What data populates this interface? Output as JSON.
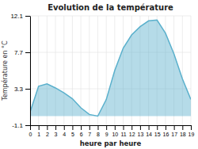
{
  "chart_data": {
    "type": "area",
    "title": "Evolution de la température",
    "x_label": "heure par heure",
    "y_label": "Température en °C",
    "x": [
      0,
      1,
      2,
      3,
      4,
      5,
      6,
      7,
      8,
      9,
      10,
      11,
      12,
      13,
      14,
      15,
      16,
      17,
      18,
      19
    ],
    "values": [
      0.5,
      3.6,
      3.9,
      3.4,
      2.8,
      2.1,
      1.0,
      0.2,
      0.0,
      2.0,
      5.5,
      8.2,
      9.8,
      10.8,
      11.5,
      11.6,
      10.0,
      7.5,
      4.5,
      2.0
    ],
    "color": "#5ab0cc",
    "xlim": [
      0,
      19
    ],
    "xticks": [
      0,
      1,
      2,
      3,
      4,
      5,
      6,
      7,
      8,
      9,
      10,
      11,
      12,
      13,
      14,
      15,
      16,
      17,
      18,
      19
    ],
    "ylim": [
      -1.1,
      12.1
    ],
    "yticks": [
      -1.1,
      3.3,
      7.7,
      12.1
    ],
    "grid": true
  }
}
